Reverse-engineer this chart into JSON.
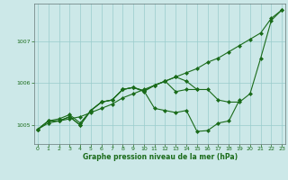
{
  "xlabel": "Graphe pression niveau de la mer (hPa)",
  "x": [
    0,
    1,
    2,
    3,
    4,
    5,
    6,
    7,
    8,
    9,
    10,
    11,
    12,
    13,
    14,
    15,
    16,
    17,
    18,
    19,
    20,
    21,
    22,
    23
  ],
  "line1": [
    1004.9,
    1005.05,
    1005.1,
    1005.15,
    1005.2,
    1005.3,
    1005.4,
    1005.5,
    1005.65,
    1005.75,
    1005.85,
    1005.95,
    1006.05,
    1006.15,
    1006.25,
    1006.35,
    1006.5,
    1006.6,
    1006.75,
    1006.9,
    1007.05,
    1007.2,
    1007.55,
    1007.75
  ],
  "line2": [
    1004.9,
    1005.1,
    1005.1,
    1005.2,
    1005.0,
    1005.35,
    1005.55,
    1005.6,
    1005.85,
    1005.9,
    1005.8,
    1005.95,
    1006.05,
    1005.8,
    1005.85,
    1005.85,
    1005.85,
    1005.6,
    1005.55,
    1005.55,
    1005.75,
    1006.6,
    1007.5,
    1007.75
  ],
  "line3": [
    1004.9,
    1005.1,
    1005.15,
    1005.25,
    1005.05,
    1005.35,
    1005.55,
    1005.6,
    1005.85,
    1005.9,
    1005.82,
    1005.4,
    1005.35,
    1005.3,
    1005.35,
    1004.85,
    1004.87,
    1005.05,
    1005.1,
    1005.6,
    null,
    null,
    null,
    null
  ],
  "line4": [
    1004.9,
    1005.1,
    1005.1,
    1005.2,
    1005.0,
    1005.35,
    1005.55,
    1005.6,
    1005.85,
    1005.9,
    1005.82,
    1005.95,
    1006.05,
    1006.15,
    1006.05,
    1005.85,
    null,
    null,
    null,
    null,
    null,
    null,
    null,
    null
  ],
  "ylim": [
    1004.55,
    1007.9
  ],
  "yticks": [
    1005,
    1006,
    1007
  ],
  "xticks": [
    0,
    1,
    2,
    3,
    4,
    5,
    6,
    7,
    8,
    9,
    10,
    11,
    12,
    13,
    14,
    15,
    16,
    17,
    18,
    19,
    20,
    21,
    22,
    23
  ],
  "line_color": "#1a6b1a",
  "bg_color": "#cce8e8",
  "plot_bg": "#cce8e8",
  "grid_color": "#99cccc",
  "marker": "D",
  "markersize": 2.0,
  "linewidth": 0.8
}
